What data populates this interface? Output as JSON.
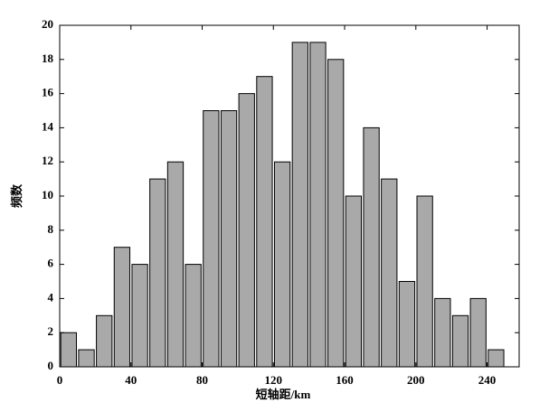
{
  "chart_data": {
    "type": "histogram",
    "x_label": "短轴距/km",
    "y_label": "频数",
    "bins": [
      0,
      10,
      20,
      30,
      40,
      50,
      60,
      70,
      80,
      90,
      100,
      110,
      120,
      130,
      140,
      150,
      160,
      170,
      180,
      190,
      200,
      210,
      220,
      230,
      240,
      250
    ],
    "values": [
      2,
      1,
      3,
      7,
      6,
      11,
      12,
      6,
      15,
      15,
      16,
      17,
      12,
      19,
      19,
      18,
      10,
      14,
      11,
      5,
      10,
      4,
      3,
      4,
      1
    ],
    "color": "#a9a9a9",
    "xlim": [
      0,
      258
    ],
    "xticks": [
      0,
      40,
      80,
      120,
      160,
      200,
      240
    ],
    "ylim": [
      0,
      20
    ],
    "yticks": [
      0,
      2,
      4,
      6,
      8,
      10,
      12,
      14,
      16,
      18,
      20
    ]
  }
}
